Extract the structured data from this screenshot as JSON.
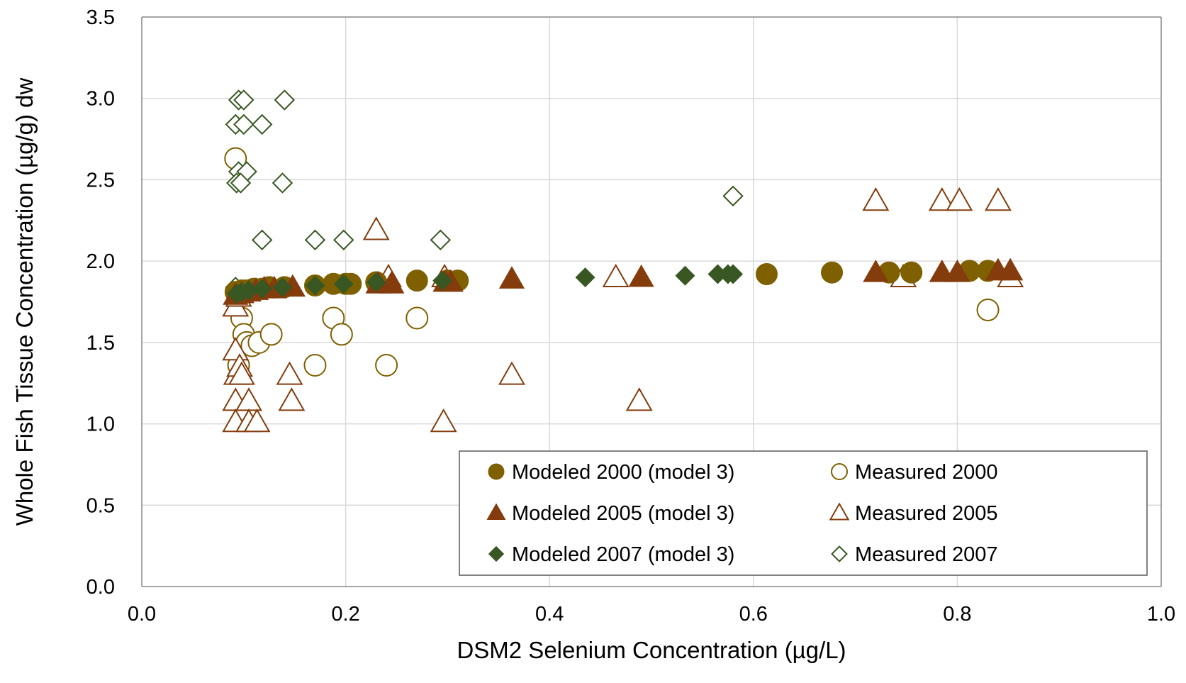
{
  "chart_data": {
    "type": "scatter",
    "title": "",
    "xlabel": "DSM2 Selenium Concentration (µg/L)",
    "ylabel": "Whole Fish Tissue Concentration (µg/g) dw",
    "xlim": [
      0,
      1.0
    ],
    "ylim": [
      0,
      3.5
    ],
    "xticks": [
      "0.0",
      "0.2",
      "0.4",
      "0.6",
      "0.8",
      "1.0"
    ],
    "yticks": [
      "0.0",
      "0.5",
      "1.0",
      "1.5",
      "2.0",
      "2.5",
      "3.0",
      "3.5"
    ],
    "grid": true,
    "legend_position": "bottom-right",
    "series": [
      {
        "name": "Modeled 2000 (model 3)",
        "marker": "circle",
        "filled": true,
        "color": "#7F6000",
        "points": [
          [
            0.092,
            1.81
          ],
          [
            0.098,
            1.82
          ],
          [
            0.103,
            1.82
          ],
          [
            0.11,
            1.83
          ],
          [
            0.118,
            1.83
          ],
          [
            0.125,
            1.84
          ],
          [
            0.14,
            1.84
          ],
          [
            0.17,
            1.85
          ],
          [
            0.188,
            1.86
          ],
          [
            0.2,
            1.86
          ],
          [
            0.205,
            1.86
          ],
          [
            0.23,
            1.87
          ],
          [
            0.27,
            1.88
          ],
          [
            0.3,
            1.88
          ],
          [
            0.31,
            1.88
          ],
          [
            0.613,
            1.92
          ],
          [
            0.677,
            1.93
          ],
          [
            0.733,
            1.93
          ],
          [
            0.755,
            1.93
          ],
          [
            0.812,
            1.94
          ],
          [
            0.83,
            1.94
          ]
        ]
      },
      {
        "name": "Measured 2000",
        "marker": "circle",
        "filled": false,
        "color": "#7F6000",
        "points": [
          [
            0.092,
            2.63
          ],
          [
            0.095,
            1.36
          ],
          [
            0.098,
            1.65
          ],
          [
            0.1,
            1.55
          ],
          [
            0.103,
            1.5
          ],
          [
            0.108,
            1.48
          ],
          [
            0.115,
            1.5
          ],
          [
            0.127,
            1.55
          ],
          [
            0.17,
            1.36
          ],
          [
            0.188,
            1.65
          ],
          [
            0.196,
            1.55
          ],
          [
            0.24,
            1.36
          ],
          [
            0.27,
            1.65
          ],
          [
            0.83,
            1.7
          ]
        ]
      },
      {
        "name": "Modeled 2005 (model 3)",
        "marker": "triangle",
        "filled": true,
        "color": "#843C0C",
        "points": [
          [
            0.092,
            1.79
          ],
          [
            0.098,
            1.8
          ],
          [
            0.105,
            1.81
          ],
          [
            0.112,
            1.82
          ],
          [
            0.12,
            1.83
          ],
          [
            0.13,
            1.83
          ],
          [
            0.148,
            1.84
          ],
          [
            0.232,
            1.86
          ],
          [
            0.245,
            1.86
          ],
          [
            0.298,
            1.87
          ],
          [
            0.303,
            1.87
          ],
          [
            0.363,
            1.89
          ],
          [
            0.49,
            1.9
          ],
          [
            0.72,
            1.93
          ],
          [
            0.785,
            1.93
          ],
          [
            0.8,
            1.93
          ],
          [
            0.84,
            1.94
          ],
          [
            0.852,
            1.94
          ]
        ]
      },
      {
        "name": "Measured 2005",
        "marker": "triangle",
        "filled": false,
        "color": "#843C0C",
        "points": [
          [
            0.092,
            1.72
          ],
          [
            0.095,
            1.78
          ],
          [
            0.092,
            1.45
          ],
          [
            0.093,
            1.3
          ],
          [
            0.096,
            1.35
          ],
          [
            0.098,
            1.3
          ],
          [
            0.092,
            1.14
          ],
          [
            0.105,
            1.14
          ],
          [
            0.092,
            1.01
          ],
          [
            0.105,
            1.01
          ],
          [
            0.113,
            1.01
          ],
          [
            0.145,
            1.3
          ],
          [
            0.147,
            1.14
          ],
          [
            0.23,
            2.19
          ],
          [
            0.242,
            1.9
          ],
          [
            0.297,
            1.9
          ],
          [
            0.296,
            1.01
          ],
          [
            0.363,
            1.3
          ],
          [
            0.465,
            1.9
          ],
          [
            0.488,
            1.14
          ],
          [
            0.72,
            2.37
          ],
          [
            0.785,
            2.37
          ],
          [
            0.802,
            2.37
          ],
          [
            0.84,
            2.37
          ],
          [
            0.747,
            1.9
          ],
          [
            0.852,
            1.9
          ]
        ]
      },
      {
        "name": "Modeled 2007 (model 3)",
        "marker": "diamond",
        "filled": true,
        "color": "#385723",
        "points": [
          [
            0.093,
            1.8
          ],
          [
            0.098,
            1.81
          ],
          [
            0.105,
            1.82
          ],
          [
            0.118,
            1.83
          ],
          [
            0.138,
            1.84
          ],
          [
            0.17,
            1.85
          ],
          [
            0.198,
            1.86
          ],
          [
            0.23,
            1.87
          ],
          [
            0.295,
            1.88
          ],
          [
            0.435,
            1.9
          ],
          [
            0.533,
            1.91
          ],
          [
            0.565,
            1.92
          ],
          [
            0.575,
            1.92
          ],
          [
            0.58,
            1.92
          ]
        ]
      },
      {
        "name": "Measured 2007",
        "marker": "diamond",
        "filled": false,
        "color": "#385723",
        "points": [
          [
            0.092,
            1.84
          ],
          [
            0.095,
            2.99
          ],
          [
            0.1,
            2.99
          ],
          [
            0.14,
            2.99
          ],
          [
            0.092,
            2.84
          ],
          [
            0.1,
            2.84
          ],
          [
            0.118,
            2.84
          ],
          [
            0.095,
            2.55
          ],
          [
            0.103,
            2.55
          ],
          [
            0.093,
            2.48
          ],
          [
            0.097,
            2.48
          ],
          [
            0.138,
            2.48
          ],
          [
            0.118,
            2.13
          ],
          [
            0.17,
            2.13
          ],
          [
            0.198,
            2.13
          ],
          [
            0.293,
            2.13
          ],
          [
            0.58,
            2.4
          ]
        ]
      }
    ]
  }
}
